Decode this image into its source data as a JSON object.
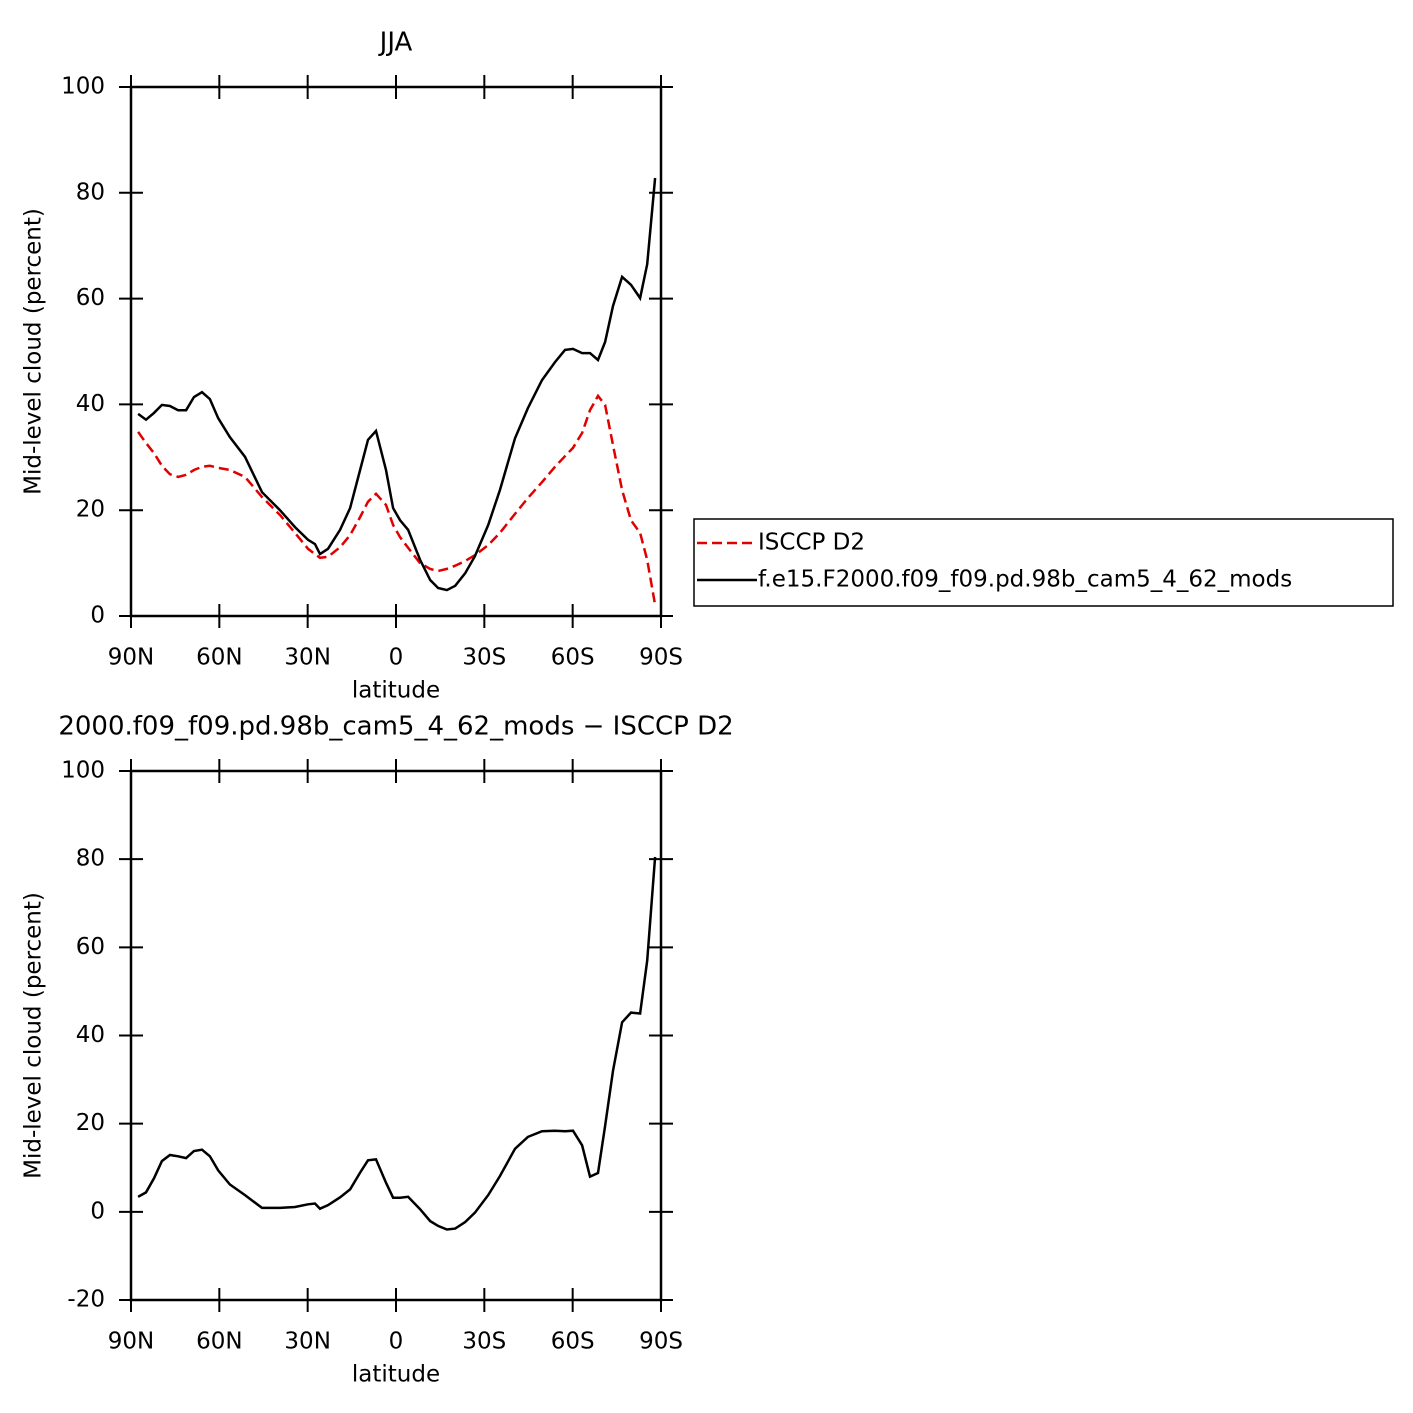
{
  "chart_data": [
    {
      "type": "line",
      "title": "JJA",
      "x_label": "latitude",
      "y_label": "Mid-level cloud (percent)",
      "x": [
        87.6,
        84.9,
        82.2,
        79.5,
        76.8,
        74.0,
        71.3,
        68.6,
        65.9,
        63.2,
        60.4,
        56.4,
        51.3,
        45.5,
        39.4,
        34.3,
        29.9,
        27.5,
        25.8,
        23.1,
        19.0,
        15.6,
        12.2,
        9.5,
        6.8,
        3.4,
        1.0,
        -1.4,
        -4.1,
        -8.2,
        -11.6,
        -14.3,
        -17.3,
        -20.1,
        -23.5,
        -26.8,
        -31.3,
        -35.3,
        -40.4,
        -44.8,
        -49.6,
        -54.0,
        -57.4,
        -60.1,
        -63.2,
        -65.9,
        -68.6,
        -71.0,
        -73.7,
        -76.8,
        -79.8,
        -82.9,
        -85.3,
        -88.0
      ],
      "series": [
        {
          "name": "ISCCP D2",
          "color": "#e00000",
          "dash": "dashed",
          "values": [
            34.8,
            32.7,
            30.8,
            28.4,
            26.8,
            26.3,
            26.7,
            27.6,
            28.2,
            28.4,
            28.0,
            27.6,
            26.3,
            22.5,
            19.1,
            15.7,
            12.7,
            11.7,
            11.0,
            11.2,
            13.0,
            15.3,
            18.7,
            21.6,
            23.1,
            21.0,
            17.2,
            14.9,
            12.9,
            10.0,
            8.9,
            8.5,
            8.9,
            9.5,
            10.4,
            11.5,
            13.4,
            15.7,
            19.3,
            22.3,
            25.3,
            28.2,
            30.2,
            31.8,
            34.6,
            38.9,
            41.6,
            39.9,
            32.3,
            23.8,
            18.1,
            15.7,
            10.6,
            2.1
          ]
        },
        {
          "name": "f.e15.F2000.f09_f09.pd.98b_cam5_4_62_mods",
          "color": "#000000",
          "dash": "solid",
          "values": [
            38.2,
            37.1,
            38.4,
            39.9,
            39.7,
            38.9,
            38.9,
            41.4,
            42.3,
            41.0,
            37.4,
            33.8,
            30.1,
            23.4,
            20.0,
            16.8,
            14.4,
            13.6,
            11.7,
            12.7,
            16.3,
            20.4,
            27.6,
            33.3,
            35.0,
            27.6,
            20.4,
            18.1,
            16.3,
            10.6,
            6.8,
            5.3,
            4.9,
            5.7,
            8.1,
            11.3,
            17.2,
            23.8,
            33.6,
            39.3,
            44.6,
            48.0,
            50.3,
            50.5,
            49.7,
            49.7,
            48.4,
            51.8,
            58.6,
            64.1,
            62.6,
            60.1,
            66.5,
            82.8
          ]
        }
      ],
      "xlim": [
        90,
        -90
      ],
      "xticks": [
        {
          "value": 90,
          "label": "90N"
        },
        {
          "value": 60,
          "label": "60N"
        },
        {
          "value": 30,
          "label": "30N"
        },
        0,
        {
          "value": -30,
          "label": "30S"
        },
        {
          "value": -60,
          "label": "60S"
        },
        {
          "value": -90,
          "label": "90S"
        }
      ],
      "ylim": [
        0,
        100
      ],
      "yticks": [
        0,
        20,
        40,
        60,
        80,
        100
      ],
      "legend": "right"
    },
    {
      "type": "line",
      "title": "2000.f09_f09.pd.98b_cam5_4_62_mods − ISCCP D2",
      "x_label": "latitude",
      "y_label": "Mid-level cloud (percent)",
      "x": [
        87.6,
        84.9,
        82.2,
        79.5,
        76.8,
        74.0,
        71.3,
        68.6,
        65.9,
        63.2,
        60.4,
        56.4,
        51.3,
        45.5,
        39.4,
        34.3,
        29.9,
        27.5,
        25.8,
        23.1,
        19.0,
        15.6,
        12.2,
        9.5,
        6.8,
        3.4,
        1.0,
        -1.4,
        -4.1,
        -8.2,
        -11.6,
        -14.3,
        -17.3,
        -20.1,
        -23.5,
        -26.8,
        -31.3,
        -35.3,
        -40.4,
        -44.8,
        -49.6,
        -54.0,
        -57.4,
        -60.1,
        -63.2,
        -65.9,
        -68.6,
        -71.0,
        -73.7,
        -76.8,
        -79.8,
        -82.9,
        -85.3,
        -88.0
      ],
      "series": [
        {
          "color": "#000000",
          "dash": "solid",
          "values": [
            3.4,
            4.4,
            7.6,
            11.5,
            12.9,
            12.6,
            12.2,
            13.8,
            14.1,
            12.6,
            9.4,
            6.2,
            3.8,
            0.9,
            0.9,
            1.1,
            1.7,
            1.9,
            0.7,
            1.5,
            3.3,
            5.1,
            8.9,
            11.7,
            11.9,
            6.6,
            3.2,
            3.2,
            3.4,
            0.6,
            -2.1,
            -3.2,
            -4.0,
            -3.8,
            -2.3,
            -0.2,
            3.8,
            8.1,
            14.3,
            17.0,
            18.3,
            18.4,
            18.3,
            18.4,
            15.1,
            8.0,
            8.8,
            19.5,
            32.0,
            43.0,
            45.2,
            45.0,
            57.0,
            80.5
          ]
        }
      ],
      "xlim": [
        90,
        -90
      ],
      "xticks": [
        {
          "value": 90,
          "label": "90N"
        },
        {
          "value": 60,
          "label": "60N"
        },
        {
          "value": 30,
          "label": "30N"
        },
        0,
        {
          "value": -30,
          "label": "30S"
        },
        {
          "value": -60,
          "label": "60S"
        },
        {
          "value": -90,
          "label": "90S"
        }
      ],
      "ylim": [
        -20,
        100
      ],
      "yticks": [
        -20,
        0,
        20,
        40,
        60,
        80,
        100
      ]
    }
  ]
}
